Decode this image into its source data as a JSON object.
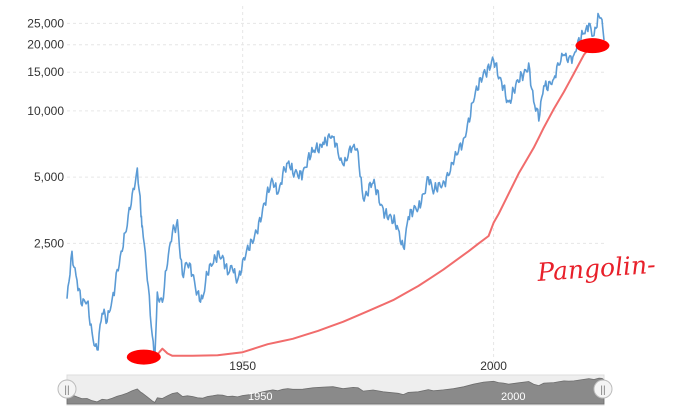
{
  "chart_data": {
    "type": "line",
    "title": "",
    "xlabel": "",
    "ylabel": "",
    "y_scale": "log",
    "xlim": [
      1915,
      2022
    ],
    "ylim": [
      650,
      30000
    ],
    "y_ticks": [
      2500,
      5000,
      10000,
      15000,
      20000,
      25000
    ],
    "y_tick_labels": [
      "2,500",
      "5,000",
      "10,000",
      "15,000",
      "20,000",
      "25,000"
    ],
    "x_ticks": [
      1950,
      2000
    ],
    "x_tick_labels": [
      "1950",
      "2000"
    ],
    "grid": true,
    "legend": "none",
    "series": [
      {
        "name": "index-blue",
        "color": "#5b9bd5",
        "x": [
          1915,
          1916,
          1917,
          1918,
          1919,
          1920,
          1921,
          1922,
          1923,
          1924,
          1925,
          1926,
          1927,
          1928,
          1929,
          1929.75,
          1930,
          1931,
          1932,
          1932.5,
          1933,
          1934,
          1935,
          1936,
          1937,
          1938,
          1939,
          1940,
          1941,
          1942,
          1943,
          1944,
          1945,
          1946,
          1947,
          1948,
          1949,
          1950,
          1952,
          1954,
          1956,
          1957,
          1958,
          1959,
          1960,
          1962,
          1964,
          1966,
          1968,
          1970,
          1972,
          1973,
          1974,
          1976,
          1978,
          1980,
          1981,
          1982,
          1983,
          1985,
          1987,
          1988,
          1990,
          1992,
          1994,
          1996,
          1998,
          2000,
          2001,
          2002,
          2003,
          2005,
          2007,
          2008,
          2009,
          2010,
          2012,
          2014,
          2015,
          2016,
          2018,
          2019,
          2020,
          2021,
          2021.6,
          2022
        ],
        "values": [
          1400,
          2300,
          1700,
          1300,
          1350,
          980,
          820,
          1200,
          1100,
          1400,
          1900,
          2300,
          3000,
          4200,
          5500,
          3300,
          3000,
          1700,
          950,
          750,
          1500,
          1350,
          2000,
          2800,
          3200,
          1800,
          2000,
          1800,
          1500,
          1400,
          1800,
          2000,
          2300,
          2200,
          1800,
          1900,
          1700,
          2100,
          2500,
          3600,
          4800,
          4200,
          5200,
          5800,
          5200,
          5300,
          6500,
          7200,
          7600,
          5700,
          6900,
          6500,
          4000,
          4700,
          3600,
          3100,
          2900,
          2400,
          3300,
          3600,
          5000,
          4200,
          4800,
          5700,
          7500,
          11000,
          15000,
          17000,
          14000,
          13000,
          11000,
          13500,
          16500,
          11000,
          9000,
          13000,
          14000,
          18000,
          17500,
          18000,
          22500,
          25000,
          22000,
          27000,
          26000,
          21000
        ]
      },
      {
        "name": "trend-red",
        "color": "#f16c6c",
        "x": [
          1932.5,
          1933,
          1934,
          1935,
          1936,
          1940,
          1945,
          1950,
          1955,
          1960,
          1965,
          1970,
          1975,
          1980,
          1985,
          1990,
          1995,
          1999,
          2000,
          2001,
          2003,
          2005,
          2008,
          2010,
          2012,
          2014,
          2016,
          2018,
          2019
        ],
        "values": [
          760,
          780,
          830,
          790,
          770,
          770,
          775,
          800,
          870,
          920,
          1000,
          1100,
          1230,
          1380,
          1600,
          1900,
          2300,
          2700,
          3100,
          3400,
          4200,
          5200,
          6800,
          8400,
          10200,
          12200,
          14800,
          18000,
          19200
        ]
      }
    ],
    "annotations": [
      {
        "type": "marker",
        "shape": "ellipse",
        "color": "#ff0000",
        "x": 1930.3,
        "y": 760
      },
      {
        "type": "marker",
        "shape": "ellipse",
        "color": "#ff0000",
        "x": 2019.7,
        "y": 19800
      },
      {
        "type": "text",
        "text": "Pangolin-",
        "color": "#e8202a"
      }
    ],
    "navigator": {
      "x_labels": [
        "1950",
        "2000"
      ],
      "handle_glyph": "||"
    }
  }
}
